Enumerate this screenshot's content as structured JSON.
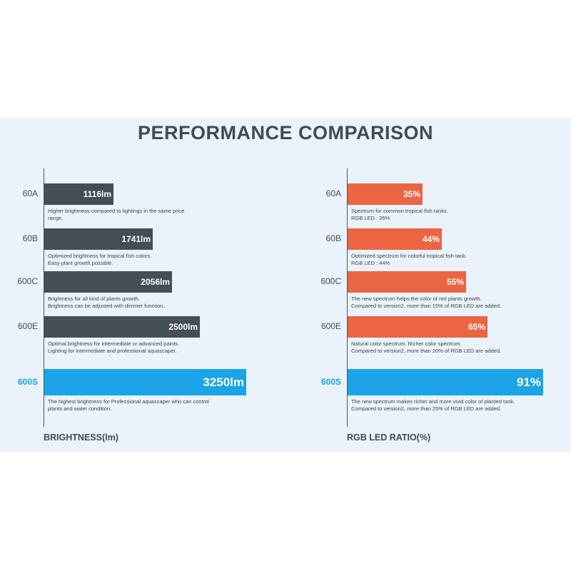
{
  "page": {
    "title": "PERFORMANCE COMPARISON"
  },
  "chart_data": [
    {
      "type": "bar",
      "orientation": "horizontal",
      "xlabel": "BRIGHTNESS(lm)",
      "categories": [
        "60A",
        "60B",
        "600C",
        "600E",
        "600S"
      ],
      "values": [
        1116,
        1741,
        2056,
        2500,
        3250
      ],
      "value_labels": [
        "1116lm",
        "1741lm",
        "2056lm",
        "2500lm",
        "3250lm"
      ],
      "descriptions": [
        [
          "Higher brightness compared to lightings in the same price",
          "range."
        ],
        [
          "Optimized brightness for tropical fish colors.",
          "Easy plant growth possible."
        ],
        [
          "Brightness for all kind of plants growth.",
          "Brightness can be adjusted with dimmer function."
        ],
        [
          "Optimal brightness for intermediate or advanced paints.",
          "Lighting for intermediate and professional aquascaper."
        ],
        [
          "The highest brightness for Professional aquascaper who can control",
          "plants and water condition."
        ]
      ],
      "colors": [
        "#444e57",
        "#444e57",
        "#444e57",
        "#444e57",
        "#1ba4e6"
      ],
      "highlight_index": 4,
      "xlim": [
        0,
        3250
      ]
    },
    {
      "type": "bar",
      "orientation": "horizontal",
      "xlabel": "RGB LED RATIO(%)",
      "categories": [
        "60A",
        "60B",
        "600C",
        "600E",
        "600S"
      ],
      "values": [
        35,
        44,
        55,
        65,
        91
      ],
      "value_labels": [
        "35%",
        "44%",
        "55%",
        "65%",
        "91%"
      ],
      "descriptions": [
        [
          "Spectrum for common tropical fish tanks.",
          "RGB LED : 35%"
        ],
        [
          "Optimized spectrum for colorful tropical fish tank.",
          "RGB LED : 44%"
        ],
        [
          "The new spectrum helps the color of red plants growth.",
          "Compared to version2, more than 15% of RGB LED are added."
        ],
        [
          "Natural color spectrum. Richer color spectrum.",
          "Compared to version2, more than 20% of RGB LED are added."
        ],
        [
          "The new spectrum makes richer and more vivid color of planted tank.",
          "Compared to version2, more than 25% of RGB LED are added."
        ]
      ],
      "colors": [
        "#ec6543",
        "#ec6543",
        "#ec6543",
        "#ec6543",
        "#1ba4e6"
      ],
      "highlight_index": 4,
      "xlim": [
        0,
        91
      ]
    }
  ]
}
